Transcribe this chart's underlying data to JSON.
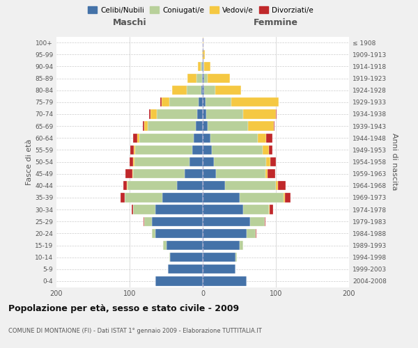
{
  "age_groups": [
    "0-4",
    "5-9",
    "10-14",
    "15-19",
    "20-24",
    "25-29",
    "30-34",
    "35-39",
    "40-44",
    "45-49",
    "50-54",
    "55-59",
    "60-64",
    "65-69",
    "70-74",
    "75-79",
    "80-84",
    "85-89",
    "90-94",
    "95-99",
    "100+"
  ],
  "birth_years": [
    "2004-2008",
    "1999-2003",
    "1994-1998",
    "1989-1993",
    "1984-1988",
    "1979-1983",
    "1974-1978",
    "1969-1973",
    "1964-1968",
    "1959-1963",
    "1954-1958",
    "1949-1953",
    "1944-1948",
    "1939-1943",
    "1934-1938",
    "1929-1933",
    "1924-1928",
    "1919-1923",
    "1914-1918",
    "1909-1913",
    "≤ 1908"
  ],
  "colors": {
    "celibi": "#4472a8",
    "coniugati": "#b8d09a",
    "vedovi": "#f5c842",
    "divorziati": "#c0282a"
  },
  "maschi": {
    "celibi": [
      65,
      48,
      45,
      50,
      65,
      70,
      65,
      55,
      35,
      25,
      18,
      14,
      12,
      10,
      8,
      6,
      2,
      1,
      1,
      0,
      0
    ],
    "coniugati": [
      0,
      0,
      1,
      4,
      5,
      10,
      30,
      52,
      68,
      70,
      75,
      78,
      75,
      65,
      55,
      40,
      20,
      8,
      2,
      0,
      0
    ],
    "vedovi": [
      0,
      0,
      0,
      0,
      0,
      0,
      0,
      0,
      1,
      1,
      2,
      2,
      3,
      5,
      8,
      10,
      20,
      12,
      4,
      1,
      0
    ],
    "divorziati": [
      0,
      0,
      0,
      0,
      0,
      1,
      2,
      5,
      5,
      10,
      5,
      5,
      5,
      2,
      2,
      2,
      0,
      0,
      0,
      0,
      0
    ]
  },
  "femmine": {
    "celibi": [
      60,
      45,
      45,
      50,
      60,
      65,
      55,
      50,
      30,
      18,
      15,
      12,
      10,
      7,
      5,
      4,
      2,
      2,
      1,
      0,
      0
    ],
    "coniugati": [
      0,
      0,
      2,
      5,
      12,
      20,
      35,
      60,
      70,
      68,
      72,
      70,
      65,
      55,
      50,
      35,
      15,
      5,
      1,
      0,
      0
    ],
    "vedovi": [
      0,
      0,
      0,
      0,
      0,
      0,
      1,
      2,
      3,
      3,
      5,
      8,
      12,
      35,
      45,
      65,
      35,
      30,
      8,
      3,
      1
    ],
    "divorziati": [
      0,
      0,
      0,
      0,
      1,
      1,
      5,
      8,
      10,
      10,
      8,
      5,
      8,
      1,
      1,
      0,
      0,
      0,
      0,
      0,
      0
    ]
  },
  "xlim": 200,
  "background_color": "#f0f0f0",
  "plot_bg": "#ffffff",
  "title": "Popolazione per età, sesso e stato civile - 2009",
  "subtitle": "COMUNE DI MONTAIONE (FI) - Dati ISTAT 1° gennaio 2009 - Elaborazione TUTTITALIA.IT",
  "ylabel_left": "Fasce di età",
  "ylabel_right": "Anni di nascita",
  "legend_labels": [
    "Celibi/Nubili",
    "Coniugati/e",
    "Vedovi/e",
    "Divorziati/e"
  ]
}
